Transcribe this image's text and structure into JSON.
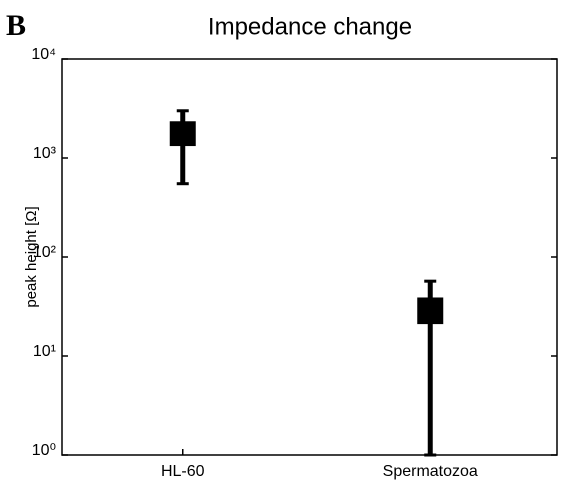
{
  "chart_data": {
    "type": "box",
    "panel_label": "B",
    "title": "Impedance change",
    "y_label": "peak height [Ω]",
    "categories": [
      "HL-60",
      "Spermatozoa"
    ],
    "whisker_low": [
      550,
      1
    ],
    "box_low": [
      1320,
      21
    ],
    "box_high": [
      2350,
      39
    ],
    "whisker_high": [
      3000,
      57
    ],
    "color": "#000000",
    "log_y": true,
    "ylim": [
      1,
      10000
    ],
    "yticks": [
      {
        "value": 1,
        "label": "10⁰"
      },
      {
        "value": 10,
        "label": "10¹"
      },
      {
        "value": 100,
        "label": "10²"
      },
      {
        "value": 1000,
        "label": "10³"
      },
      {
        "value": 10000,
        "label": "10⁴"
      }
    ]
  }
}
